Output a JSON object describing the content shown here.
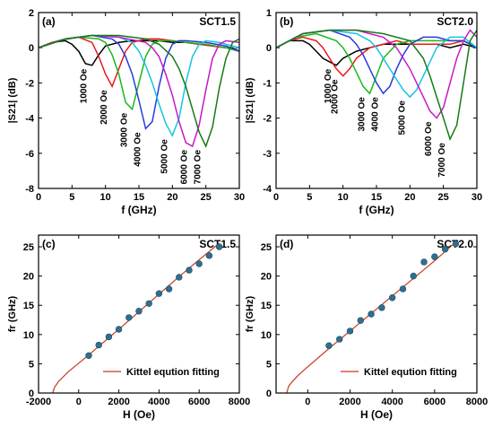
{
  "chart_data": [
    {
      "type": "line",
      "panel": "(a)",
      "sample": "SCT1.5",
      "xlabel": "f (GHz)",
      "ylabel": "|S21| (dB)",
      "xlim": [
        0,
        30
      ],
      "ylim": [
        -8,
        2
      ],
      "xticks": [
        0,
        5,
        10,
        15,
        20,
        25,
        30
      ],
      "yticks": [
        2,
        0,
        -2,
        -4,
        -6,
        -8
      ],
      "series": [
        {
          "name": "1000 Oe",
          "color": "#000000",
          "x": [
            0,
            2,
            4,
            5,
            6,
            7,
            8,
            9,
            10,
            12,
            14,
            16,
            18,
            20,
            22,
            24,
            26,
            28,
            29,
            30
          ],
          "y": [
            0,
            0.3,
            0.4,
            0.2,
            -0.2,
            -0.9,
            -1.0,
            -0.4,
            0.1,
            0.3,
            0.4,
            0.4,
            0.4,
            0.3,
            0.3,
            0.2,
            0.1,
            0,
            0,
            -0.2
          ]
        },
        {
          "name": "2000 Oe",
          "color": "#e8191c",
          "x": [
            0,
            2,
            4,
            6,
            8,
            9,
            10,
            11,
            12,
            13,
            14,
            16,
            18,
            20,
            22,
            24,
            26,
            28,
            30
          ],
          "y": [
            0,
            0.3,
            0.5,
            0.6,
            0.3,
            -0.5,
            -1.5,
            -2.2,
            -1.2,
            -0.2,
            0.3,
            0.5,
            0.5,
            0.4,
            0.3,
            0.2,
            0.1,
            0,
            -0.2
          ]
        },
        {
          "name": "3000 Oe",
          "color": "#19b919",
          "x": [
            0,
            3,
            6,
            9,
            10,
            11,
            12,
            13,
            14,
            15,
            16,
            17,
            18,
            20,
            22,
            25,
            28,
            30
          ],
          "y": [
            0,
            0.4,
            0.6,
            0.5,
            0.3,
            -0.4,
            -1.5,
            -3.1,
            -3.5,
            -2.0,
            -0.5,
            0.2,
            0.4,
            0.4,
            0.3,
            0.2,
            0,
            -0.2
          ]
        },
        {
          "name": "4000 Oe",
          "color": "#2a3bd8",
          "x": [
            0,
            4,
            8,
            11,
            12,
            13,
            14,
            15,
            16,
            17,
            18,
            19,
            20,
            21,
            22,
            25,
            28,
            30
          ],
          "y": [
            0,
            0.5,
            0.7,
            0.5,
            0.2,
            -0.5,
            -1.5,
            -3.0,
            -4.6,
            -4.2,
            -2.2,
            -0.6,
            0.2,
            0.4,
            0.4,
            0.3,
            0.1,
            -0.2
          ]
        },
        {
          "name": "5000 Oe",
          "color": "#17c3e3",
          "x": [
            0,
            4,
            8,
            12,
            14,
            15,
            16,
            17,
            18,
            19,
            20,
            21,
            22,
            23,
            24,
            25,
            27,
            30
          ],
          "y": [
            0,
            0.5,
            0.7,
            0.6,
            0.3,
            -0.2,
            -1.0,
            -2.0,
            -3.2,
            -4.3,
            -5.0,
            -4.0,
            -2.0,
            -0.5,
            0.2,
            0.4,
            0.3,
            0
          ]
        },
        {
          "name": "6000 Oe",
          "color": "#c619c9",
          "x": [
            0,
            4,
            8,
            12,
            16,
            17,
            18,
            19,
            20,
            21,
            22,
            23,
            24,
            25,
            26,
            27,
            28,
            30
          ],
          "y": [
            0,
            0.5,
            0.7,
            0.6,
            0.3,
            0,
            -0.5,
            -1.5,
            -2.7,
            -4.2,
            -5.4,
            -5.6,
            -4.4,
            -2.4,
            -0.6,
            0.2,
            0.4,
            0.3
          ]
        },
        {
          "name": "7000 Oe",
          "color": "#177a17",
          "x": [
            0,
            4,
            8,
            12,
            16,
            18,
            20,
            21,
            22,
            23,
            24,
            25,
            26,
            27,
            28,
            29,
            30
          ],
          "y": [
            0,
            0.5,
            0.7,
            0.7,
            0.5,
            0.2,
            -0.5,
            -1.2,
            -2.2,
            -3.5,
            -4.8,
            -5.6,
            -4.5,
            -2.3,
            -0.6,
            0.3,
            0.5
          ]
        }
      ],
      "annotations": [
        "1000 Oe",
        "2000 Oe",
        "3000 Oe",
        "4000 Oe",
        "5000 Oe",
        "6000 Oe",
        "7000 Oe"
      ]
    },
    {
      "type": "line",
      "panel": "(b)",
      "sample": "SCT2.0",
      "xlabel": "f (GHz)",
      "ylabel": "|S21| (dB)",
      "xlim": [
        0,
        30
      ],
      "ylim": [
        -4,
        1
      ],
      "xticks": [
        0,
        5,
        10,
        15,
        20,
        25,
        30
      ],
      "yticks": [
        1,
        0,
        -1,
        -2,
        -3,
        -4
      ],
      "series": [
        {
          "name": "1000 Oe",
          "color": "#000000",
          "x": [
            0,
            2,
            4,
            5,
            6,
            7,
            8,
            9,
            10,
            12,
            14,
            16,
            18,
            20,
            22,
            24,
            26,
            28,
            30
          ],
          "y": [
            0,
            0.2,
            0.2,
            0.1,
            -0.1,
            -0.3,
            -0.4,
            -0.5,
            -0.3,
            -0.1,
            0,
            0.1,
            0.1,
            0.1,
            0.1,
            0.1,
            0,
            0.1,
            0
          ]
        },
        {
          "name": "2000 Oe",
          "color": "#e8191c",
          "x": [
            0,
            2,
            4,
            6,
            7,
            8,
            9,
            10,
            11,
            12,
            14,
            16,
            18,
            20,
            22,
            24,
            26,
            28,
            30
          ],
          "y": [
            0,
            0.2,
            0.3,
            0.2,
            0,
            -0.3,
            -0.6,
            -0.8,
            -0.6,
            -0.3,
            0,
            0.1,
            0.2,
            0.1,
            0.1,
            0.1,
            0.1,
            0.2,
            0
          ]
        },
        {
          "name": "3000 Oe",
          "color": "#19b919",
          "x": [
            0,
            3,
            6,
            9,
            10,
            11,
            12,
            13,
            14,
            15,
            16,
            18,
            20,
            22,
            24,
            26,
            28,
            30
          ],
          "y": [
            0,
            0.3,
            0.4,
            0.2,
            0,
            -0.3,
            -0.7,
            -1.1,
            -1.3,
            -0.8,
            -0.3,
            0.1,
            0.2,
            0.2,
            0.2,
            0.2,
            0.2,
            0
          ]
        },
        {
          "name": "4000 Oe",
          "color": "#2a3bd8",
          "x": [
            0,
            4,
            8,
            11,
            12,
            13,
            14,
            15,
            16,
            17,
            18,
            19,
            20,
            22,
            24,
            26,
            28,
            30
          ],
          "y": [
            0,
            0.4,
            0.5,
            0.3,
            0.1,
            -0.2,
            -0.6,
            -1.0,
            -1.3,
            -1.1,
            -0.6,
            -0.2,
            0.1,
            0.3,
            0.3,
            0.2,
            0.2,
            0
          ]
        },
        {
          "name": "5000 Oe",
          "color": "#17c3e3",
          "x": [
            0,
            4,
            8,
            12,
            14,
            15,
            16,
            17,
            18,
            19,
            20,
            21,
            22,
            23,
            24,
            26,
            28,
            30
          ],
          "y": [
            0,
            0.4,
            0.5,
            0.4,
            0.2,
            0,
            -0.3,
            -0.6,
            -0.9,
            -1.2,
            -1.4,
            -1.2,
            -0.8,
            -0.4,
            0,
            0.3,
            0.3,
            0
          ]
        },
        {
          "name": "6000 Oe",
          "color": "#c619c9",
          "x": [
            0,
            4,
            8,
            12,
            16,
            18,
            19,
            20,
            21,
            22,
            23,
            24,
            25,
            26,
            27,
            28,
            29,
            30
          ],
          "y": [
            0,
            0.4,
            0.5,
            0.5,
            0.3,
            0,
            -0.3,
            -0.6,
            -1.0,
            -1.4,
            -1.8,
            -2.0,
            -1.7,
            -1.0,
            -0.3,
            0.2,
            0.5,
            0.3
          ]
        },
        {
          "name": "7000 Oe",
          "color": "#177a17",
          "x": [
            0,
            4,
            8,
            12,
            16,
            20,
            22,
            23,
            24,
            25,
            26,
            27,
            28,
            29,
            30
          ],
          "y": [
            0,
            0.4,
            0.5,
            0.5,
            0.4,
            0.2,
            -0.3,
            -0.8,
            -1.4,
            -2.0,
            -2.6,
            -2.2,
            -1.0,
            0.2,
            0.5
          ]
        }
      ],
      "annotations": [
        "1000 Oe",
        "2000 Oe",
        "3000 Oe",
        "4000 Oe",
        "5000 Oe",
        "6000 Oe",
        "7000 Oe"
      ]
    },
    {
      "type": "scatter",
      "panel": "(c)",
      "sample": "SCT1.5",
      "xlabel": "H (Oe)",
      "ylabel": "fr (GHz)",
      "xlim": [
        -2000,
        8000
      ],
      "ylim": [
        0,
        27
      ],
      "xticks": [
        -2000,
        0,
        2000,
        4000,
        6000,
        8000
      ],
      "yticks": [
        0,
        5,
        10,
        15,
        20,
        25
      ],
      "points": {
        "x": [
          500,
          1000,
          1500,
          2000,
          2500,
          3000,
          3500,
          4000,
          4500,
          5000,
          5500,
          6000,
          6500,
          7000
        ],
        "y": [
          6.4,
          8.2,
          9.6,
          10.9,
          12.9,
          14.0,
          15.3,
          17.0,
          17.8,
          19.8,
          21.0,
          22.1,
          23.5,
          25.0
        ]
      },
      "fit": {
        "name": "Kittel eqution fitting",
        "color": "#c8381c",
        "x": [
          -1300,
          -1200,
          -1000,
          -500,
          0,
          500,
          1000,
          2000,
          3000,
          4000,
          5000,
          6000,
          7000
        ],
        "y": [
          0,
          1.0,
          2.0,
          3.7,
          5.1,
          6.5,
          8.0,
          10.9,
          13.9,
          16.9,
          19.9,
          22.8,
          25.6
        ]
      },
      "legend": "bottom-right"
    },
    {
      "type": "scatter",
      "panel": "(d)",
      "sample": "SCT2.0",
      "xlabel": "H (Oe)",
      "ylabel": "fr (GHz)",
      "xlim": [
        -1500,
        8000
      ],
      "ylim": [
        0,
        27
      ],
      "xticks": [
        0,
        2000,
        4000,
        6000,
        8000
      ],
      "yticks": [
        0,
        5,
        10,
        15,
        20,
        25
      ],
      "points": {
        "x": [
          1000,
          1500,
          2000,
          2500,
          3000,
          3500,
          4000,
          4500,
          5000,
          5500,
          6000,
          6500,
          7000
        ],
        "y": [
          8.1,
          9.2,
          10.6,
          12.4,
          13.5,
          14.6,
          16.3,
          17.8,
          20.0,
          22.4,
          23.3,
          24.6,
          25.5
        ]
      },
      "fit": {
        "name": "Kittel eqution fitting",
        "color": "#c8381c",
        "x": [
          -1000,
          -900,
          -700,
          -400,
          0,
          1000,
          2000,
          3000,
          4000,
          5000,
          6000,
          7000
        ],
        "y": [
          0,
          1.2,
          2.1,
          3.2,
          4.5,
          7.6,
          10.6,
          13.6,
          16.6,
          19.6,
          22.6,
          25.8
        ]
      },
      "legend": "bottom-right"
    }
  ]
}
